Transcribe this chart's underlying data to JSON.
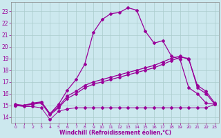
{
  "xlabel": "Windchill (Refroidissement éolien,°C)",
  "background_color": "#cce8ee",
  "grid_color": "#aacccc",
  "line_color": "#990099",
  "xlim": [
    -0.5,
    23.5
  ],
  "ylim": [
    13.5,
    23.8
  ],
  "yticks": [
    14,
    15,
    16,
    17,
    18,
    19,
    20,
    21,
    22,
    23
  ],
  "xticks": [
    0,
    1,
    2,
    3,
    4,
    5,
    6,
    7,
    8,
    9,
    10,
    11,
    12,
    13,
    14,
    15,
    16,
    17,
    18,
    19,
    20,
    21,
    22,
    23
  ],
  "line1_x": [
    0,
    1,
    2,
    3,
    4,
    5,
    6,
    7,
    8,
    9,
    10,
    11,
    12,
    13,
    14,
    15,
    16,
    17,
    18,
    19,
    20,
    21,
    22,
    23
  ],
  "line1_y": [
    15.0,
    14.9,
    14.9,
    14.8,
    13.8,
    14.5,
    14.7,
    14.8,
    14.8,
    14.8,
    14.8,
    14.8,
    14.8,
    14.8,
    14.8,
    14.8,
    14.8,
    14.8,
    14.8,
    14.8,
    14.8,
    14.8,
    14.8,
    15.1
  ],
  "line2_x": [
    0,
    1,
    2,
    3,
    4,
    5,
    6,
    7,
    8,
    9,
    10,
    11,
    12,
    13,
    14,
    15,
    16,
    17,
    18,
    19,
    20,
    21,
    22,
    23
  ],
  "line2_y": [
    15.0,
    15.0,
    15.1,
    15.2,
    14.2,
    14.8,
    15.6,
    16.0,
    16.5,
    16.8,
    17.0,
    17.2,
    17.4,
    17.6,
    17.8,
    18.0,
    18.2,
    18.5,
    18.8,
    19.1,
    19.0,
    16.5,
    16.0,
    15.1
  ],
  "line3_x": [
    0,
    1,
    2,
    3,
    4,
    5,
    6,
    7,
    8,
    9,
    10,
    11,
    12,
    13,
    14,
    15,
    16,
    17,
    18,
    19,
    20,
    21,
    22,
    23
  ],
  "line3_y": [
    15.0,
    15.0,
    15.2,
    15.3,
    14.3,
    14.9,
    15.8,
    16.2,
    16.7,
    17.0,
    17.2,
    17.4,
    17.6,
    17.8,
    18.0,
    18.2,
    18.4,
    18.7,
    19.0,
    19.2,
    18.9,
    16.7,
    16.2,
    15.2
  ],
  "line4_x": [
    0,
    1,
    2,
    3,
    4,
    5,
    6,
    7,
    8,
    9,
    10,
    11,
    12,
    13,
    14,
    15,
    16,
    17,
    18,
    19,
    20,
    21,
    22,
    23
  ],
  "line4_y": [
    15.1,
    15.0,
    15.1,
    15.3,
    14.3,
    15.1,
    16.3,
    17.2,
    18.5,
    21.2,
    22.3,
    22.8,
    22.9,
    23.3,
    23.1,
    21.3,
    20.3,
    20.5,
    19.2,
    18.9,
    16.5,
    16.0,
    15.2,
    15.1
  ]
}
